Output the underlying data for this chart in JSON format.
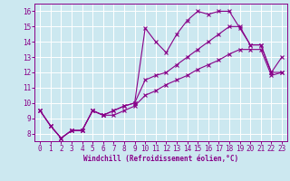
{
  "title": "",
  "xlabel": "Windchill (Refroidissement éolien,°C)",
  "ylabel": "",
  "background_color": "#cce8f0",
  "grid_color": "#ffffff",
  "line_color": "#880088",
  "ylim": [
    7.5,
    16.5
  ],
  "xlim": [
    -0.5,
    23.5
  ],
  "yticks": [
    8,
    9,
    10,
    11,
    12,
    13,
    14,
    15,
    16
  ],
  "xticks": [
    0,
    1,
    2,
    3,
    4,
    5,
    6,
    7,
    8,
    9,
    10,
    11,
    12,
    13,
    14,
    15,
    16,
    17,
    18,
    19,
    20,
    21,
    22,
    23
  ],
  "series": [
    [
      9.5,
      8.5,
      7.7,
      8.2,
      8.2,
      9.5,
      9.2,
      9.5,
      9.8,
      10.0,
      14.9,
      14.0,
      13.3,
      14.5,
      15.4,
      16.0,
      15.8,
      16.0,
      16.0,
      14.9,
      13.8,
      13.8,
      12.0,
      13.0
    ],
    [
      9.5,
      8.5,
      7.7,
      8.2,
      8.2,
      9.5,
      9.2,
      9.5,
      9.8,
      10.0,
      11.5,
      11.8,
      12.0,
      12.5,
      13.0,
      13.5,
      14.0,
      14.5,
      15.0,
      15.0,
      13.8,
      13.8,
      12.0,
      12.0
    ],
    [
      9.5,
      8.5,
      7.7,
      8.2,
      8.2,
      9.5,
      9.2,
      9.2,
      9.5,
      9.8,
      10.5,
      10.8,
      11.2,
      11.5,
      11.8,
      12.2,
      12.5,
      12.8,
      13.2,
      13.5,
      13.5,
      13.5,
      11.8,
      12.0
    ]
  ],
  "tick_fontsize": 5.5,
  "xlabel_fontsize": 5.5
}
